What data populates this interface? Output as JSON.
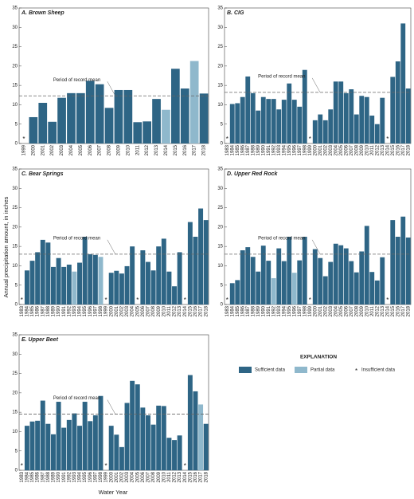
{
  "axis_label": "Annual precipitation amount, in inches",
  "x_label": "Water Year",
  "legend": {
    "title": "EXPLANATION",
    "insufficient": "Insufficient data",
    "marker": "*"
  },
  "chart_data": [
    {
      "type": "bar",
      "title": "A. Brown Sheep",
      "mean": 12.3,
      "mean_label": "Period of record mean",
      "ylim": [
        0,
        35
      ],
      "yticks": [
        0,
        5,
        10,
        15,
        20,
        25,
        30,
        35
      ],
      "categories": [
        "1999",
        "2000",
        "2001",
        "2002",
        "2003",
        "2004",
        "2005",
        "2006",
        "2007",
        "2008",
        "2009",
        "2010",
        "2011",
        "2012",
        "2013",
        "2014",
        "2015",
        "2016",
        "2017",
        "2018"
      ],
      "series": [
        {
          "name": "Sufficient data",
          "color": "#2e6585",
          "values": [
            null,
            6.8,
            10.5,
            5.6,
            11.8,
            13.0,
            13.0,
            16.2,
            15.3,
            9.2,
            13.8,
            13.8,
            5.5,
            5.7,
            11.5,
            null,
            19.3,
            14.2,
            null,
            12.9
          ]
        },
        {
          "name": "Partial data",
          "color": "#8fb8cc",
          "values": [
            null,
            null,
            null,
            null,
            null,
            null,
            null,
            null,
            null,
            null,
            null,
            null,
            null,
            null,
            null,
            8.7,
            null,
            null,
            21.3,
            null
          ]
        }
      ]
    },
    {
      "type": "bar",
      "title": "B. CIG",
      "mean": 13.2,
      "mean_label": "Period of record mean",
      "ylim": [
        0,
        35
      ],
      "yticks": [
        0,
        5,
        10,
        15,
        20,
        25,
        30,
        35
      ],
      "categories": [
        "1983",
        "1984",
        "1985",
        "1986",
        "1987",
        "1988",
        "1989",
        "1990",
        "1991",
        "1992",
        "1993",
        "1994",
        "1995",
        "1996",
        "1997",
        "1998",
        "1999",
        "2000",
        "2001",
        "2002",
        "2003",
        "2004",
        "2005",
        "2006",
        "2007",
        "2008",
        "2009",
        "2010",
        "2011",
        "2012",
        "2013",
        "2014",
        "2015",
        "2016",
        "2017",
        "2018"
      ],
      "series": [
        {
          "name": "Sufficient data",
          "color": "#2e6585",
          "values": [
            null,
            10.2,
            10.4,
            12.0,
            17.3,
            13.0,
            8.5,
            12.0,
            11.5,
            11.5,
            8.8,
            11.3,
            15.5,
            11.3,
            9.5,
            19.0,
            null,
            6.0,
            7.5,
            6.0,
            8.8,
            16.0,
            16.0,
            13.0,
            14.0,
            7.5,
            12.3,
            12.0,
            7.2,
            5.0,
            11.8,
            null,
            17.2,
            21.2,
            31.0,
            14.2
          ]
        },
        {
          "name": "Partial data",
          "color": "#8fb8cc",
          "values": [
            null,
            null,
            null,
            null,
            null,
            null,
            null,
            null,
            null,
            null,
            null,
            null,
            null,
            null,
            null,
            null,
            null,
            null,
            null,
            null,
            null,
            null,
            null,
            null,
            null,
            null,
            null,
            null,
            null,
            null,
            null,
            null,
            null,
            null,
            null,
            null
          ]
        }
      ]
    },
    {
      "type": "bar",
      "title": "C. Bear Springs",
      "mean": 13.0,
      "mean_label": "Period of record mean",
      "ylim": [
        0,
        35
      ],
      "yticks": [
        0,
        5,
        10,
        15,
        20,
        25,
        30,
        35
      ],
      "categories": [
        "1983",
        "1984",
        "1985",
        "1986",
        "1987",
        "1988",
        "1989",
        "1990",
        "1991",
        "1992",
        "1993",
        "1994",
        "1995",
        "1996",
        "1997",
        "1998",
        "1999",
        "2000",
        "2001",
        "2002",
        "2003",
        "2004",
        "2005",
        "2006",
        "2007",
        "2008",
        "2009",
        "2010",
        "2011",
        "2012",
        "2013",
        "2014",
        "2015",
        "2016",
        "2017",
        "2018"
      ],
      "series": [
        {
          "name": "Sufficient data",
          "color": "#2e6585",
          "values": [
            null,
            8.8,
            11.3,
            13.5,
            16.7,
            16.0,
            9.7,
            12.0,
            9.7,
            10.3,
            null,
            10.8,
            17.5,
            13.0,
            12.8,
            null,
            null,
            8.2,
            8.7,
            8.0,
            9.9,
            15.0,
            null,
            14.0,
            11.0,
            8.8,
            15.0,
            17.0,
            8.5,
            4.7,
            13.5,
            null,
            21.3,
            17.5,
            24.8,
            21.8
          ]
        },
        {
          "name": "Partial data",
          "color": "#8fb8cc",
          "values": [
            null,
            null,
            null,
            null,
            null,
            null,
            null,
            null,
            null,
            null,
            8.5,
            null,
            null,
            null,
            null,
            12.3,
            null,
            null,
            null,
            null,
            null,
            null,
            null,
            null,
            null,
            null,
            null,
            null,
            null,
            null,
            null,
            null,
            null,
            null,
            null,
            null
          ]
        }
      ]
    },
    {
      "type": "bar",
      "title": "D. Upper Red Rock",
      "mean": 13.0,
      "mean_label": "Period of record mean",
      "ylim": [
        0,
        35
      ],
      "yticks": [
        0,
        5,
        10,
        15,
        20,
        25,
        30,
        35
      ],
      "categories": [
        "1983",
        "1984",
        "1985",
        "1986",
        "1987",
        "1988",
        "1989",
        "1990",
        "1991",
        "1992",
        "1993",
        "1994",
        "1995",
        "1996",
        "1997",
        "1998",
        "1999",
        "2000",
        "2001",
        "2002",
        "2003",
        "2004",
        "2005",
        "2006",
        "2007",
        "2008",
        "2009",
        "2010",
        "2011",
        "2012",
        "2013",
        "2014",
        "2015",
        "2016",
        "2017",
        "2018"
      ],
      "series": [
        {
          "name": "Sufficient data",
          "color": "#2e6585",
          "values": [
            null,
            5.5,
            6.3,
            14.0,
            14.8,
            12.3,
            8.5,
            15.2,
            11.3,
            null,
            14.5,
            11.2,
            17.5,
            null,
            11.4,
            17.5,
            null,
            14.3,
            12.0,
            7.3,
            11.0,
            15.7,
            15.3,
            14.5,
            11.2,
            8.3,
            13.7,
            20.3,
            8.4,
            6.2,
            12.2,
            null,
            21.8,
            17.5,
            22.7,
            17.3
          ]
        },
        {
          "name": "Partial data",
          "color": "#8fb8cc",
          "values": [
            null,
            null,
            null,
            null,
            null,
            null,
            null,
            null,
            null,
            6.8,
            null,
            null,
            null,
            8.2,
            null,
            null,
            null,
            null,
            null,
            null,
            null,
            null,
            null,
            null,
            null,
            null,
            null,
            null,
            null,
            null,
            null,
            null,
            null,
            null,
            null,
            null
          ]
        }
      ]
    },
    {
      "type": "bar",
      "title": "E. Upper Beet",
      "mean": 14.5,
      "mean_label": "Period of record mean",
      "ylim": [
        0,
        35
      ],
      "yticks": [
        0,
        5,
        10,
        15,
        20,
        25,
        30,
        35
      ],
      "categories": [
        "1983",
        "1984",
        "1985",
        "1986",
        "1987",
        "1988",
        "1989",
        "1990",
        "1991",
        "1992",
        "1993",
        "1994",
        "1995",
        "1996",
        "1997",
        "1998",
        "1999",
        "2000",
        "2001",
        "2002",
        "2003",
        "2004",
        "2005",
        "2006",
        "2007",
        "2008",
        "2009",
        "2010",
        "2011",
        "2012",
        "2013",
        "2014",
        "2015",
        "2016",
        "2017",
        "2018"
      ],
      "series": [
        {
          "name": "Sufficient data",
          "color": "#2e6585",
          "values": [
            null,
            11.5,
            12.6,
            12.8,
            18.0,
            12.0,
            9.3,
            17.7,
            11.0,
            13.0,
            14.7,
            11.5,
            17.7,
            12.7,
            14.2,
            19.2,
            null,
            11.5,
            9.2,
            6.0,
            17.4,
            23.1,
            22.2,
            16.2,
            14.2,
            11.8,
            16.7,
            16.6,
            8.4,
            7.8,
            9.0,
            null,
            24.6,
            20.4,
            null,
            12.0
          ]
        },
        {
          "name": "Partial data",
          "color": "#8fb8cc",
          "values": [
            null,
            null,
            null,
            null,
            null,
            null,
            null,
            null,
            null,
            null,
            null,
            null,
            null,
            null,
            null,
            null,
            null,
            null,
            null,
            null,
            null,
            null,
            null,
            null,
            null,
            null,
            null,
            null,
            null,
            null,
            null,
            null,
            null,
            null,
            17.0,
            null
          ]
        }
      ]
    }
  ]
}
